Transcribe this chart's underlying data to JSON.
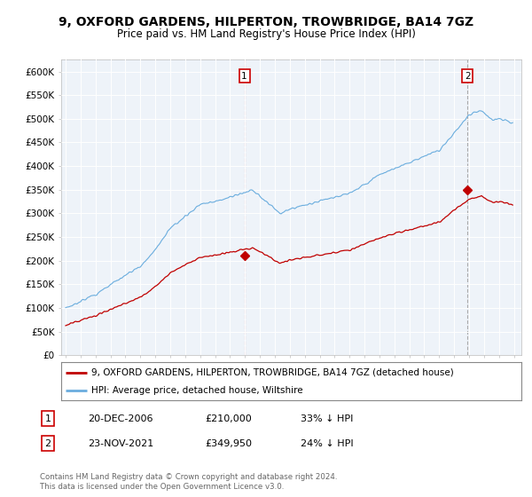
{
  "title": "9, OXFORD GARDENS, HILPERTON, TROWBRIDGE, BA14 7GZ",
  "subtitle": "Price paid vs. HM Land Registry's House Price Index (HPI)",
  "ylim": [
    0,
    625000
  ],
  "yticks": [
    0,
    50000,
    100000,
    150000,
    200000,
    250000,
    300000,
    350000,
    400000,
    450000,
    500000,
    550000,
    600000
  ],
  "ytick_labels": [
    "£0",
    "£50K",
    "£100K",
    "£150K",
    "£200K",
    "£250K",
    "£300K",
    "£350K",
    "£400K",
    "£450K",
    "£500K",
    "£550K",
    "£600K"
  ],
  "hpi_color": "#6aadde",
  "price_color": "#c00000",
  "sale1_price": 210000,
  "sale2_price": 349950,
  "sale1_year": 2006.96,
  "sale2_year": 2021.9,
  "sale1_label": "1",
  "sale2_label": "2",
  "sale1_date": "20-DEC-2006",
  "sale2_date": "23-NOV-2021",
  "sale1_pct": "33% ↓ HPI",
  "sale2_pct": "24% ↓ HPI",
  "legend_line1": "9, OXFORD GARDENS, HILPERTON, TROWBRIDGE, BA14 7GZ (detached house)",
  "legend_line2": "HPI: Average price, detached house, Wiltshire",
  "footnote": "Contains HM Land Registry data © Crown copyright and database right 2024.\nThis data is licensed under the Open Government Licence v3.0.",
  "plot_bg_color": "#eef3f9",
  "grid_color": "#ffffff",
  "fig_bg_color": "#ffffff",
  "vline1_color": "#e08080",
  "vline2_color": "#aaaaaa"
}
